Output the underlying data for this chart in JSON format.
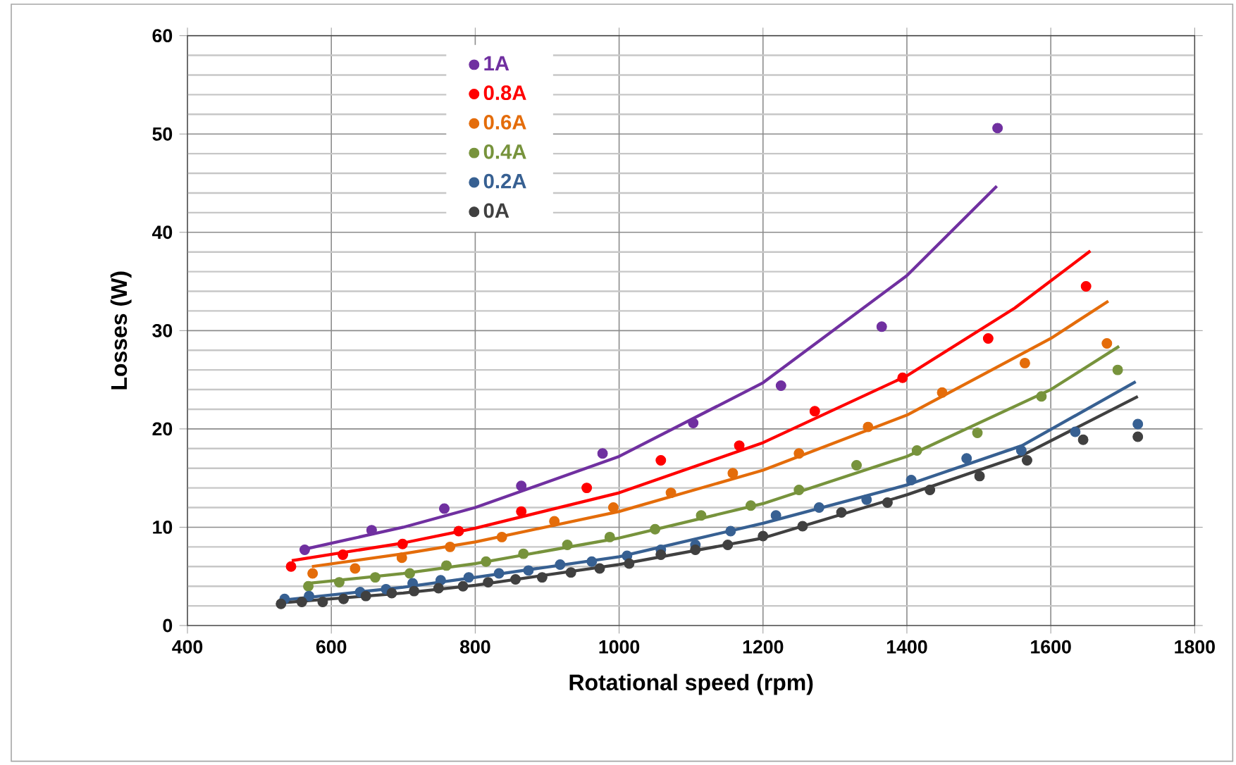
{
  "chart_data": {
    "type": "scatter",
    "xlabel": "Rotational speed (rpm)",
    "ylabel": "Losses (W)",
    "xlim": [
      400,
      1800
    ],
    "xticks": [
      400,
      600,
      800,
      1000,
      1200,
      1400,
      1600,
      1800
    ],
    "ylim": [
      0,
      60
    ],
    "yticks": [
      0,
      10,
      20,
      30,
      40,
      50,
      60
    ],
    "grid": true,
    "legend": "top",
    "marker": "circle",
    "series": [
      {
        "name": "1A",
        "color": "#7030a0",
        "x": [
          563,
          656,
          757,
          864,
          977,
          1103,
          1225,
          1365,
          1526
        ],
        "values": [
          7.7,
          9.7,
          11.9,
          14.2,
          17.5,
          20.6,
          24.4,
          30.4,
          50.6
        ]
      },
      {
        "name": "0.8A",
        "color": "#ff0000",
        "x": [
          544,
          616,
          699,
          777,
          864,
          955,
          1058,
          1167,
          1272,
          1394,
          1513,
          1649
        ],
        "values": [
          6.0,
          7.2,
          8.3,
          9.6,
          11.6,
          14.0,
          16.8,
          18.3,
          21.8,
          25.2,
          29.2,
          34.5
        ]
      },
      {
        "name": "0.6A",
        "color": "#e46c0a",
        "x": [
          574,
          633,
          698,
          765,
          837,
          910,
          992,
          1072,
          1158,
          1250,
          1346,
          1449,
          1564,
          1678
        ],
        "values": [
          5.3,
          5.8,
          6.9,
          8.0,
          9.0,
          10.6,
          12.0,
          13.5,
          15.5,
          17.5,
          20.2,
          23.7,
          26.7,
          28.7
        ]
      },
      {
        "name": "0.4A",
        "color": "#77933c",
        "x": [
          568,
          611,
          661,
          709,
          760,
          815,
          867,
          928,
          987,
          1050,
          1114,
          1183,
          1250,
          1330,
          1414,
          1498,
          1587,
          1693
        ],
        "values": [
          4.0,
          4.4,
          4.9,
          5.3,
          6.1,
          6.5,
          7.3,
          8.2,
          9.0,
          9.8,
          11.2,
          12.2,
          13.8,
          16.3,
          17.8,
          19.6,
          23.3,
          26.0
        ]
      },
      {
        "name": "0.2A",
        "color": "#376092",
        "x": [
          535,
          569,
          640,
          676,
          713,
          752,
          791,
          833,
          874,
          918,
          962,
          1011,
          1058,
          1106,
          1155,
          1218,
          1278,
          1344,
          1406,
          1483,
          1559,
          1634,
          1721
        ],
        "values": [
          2.7,
          3.0,
          3.4,
          3.7,
          4.3,
          4.6,
          4.9,
          5.3,
          5.6,
          6.2,
          6.5,
          7.1,
          7.7,
          8.2,
          9.6,
          11.2,
          12.0,
          12.8,
          14.8,
          17.0,
          17.8,
          19.7,
          20.5
        ]
      },
      {
        "name": "0A",
        "color": "#404040",
        "x": [
          530,
          559,
          588,
          617,
          648,
          684,
          715,
          749,
          783,
          818,
          856,
          893,
          933,
          973,
          1014,
          1058,
          1106,
          1151,
          1200,
          1255,
          1309,
          1373,
          1432,
          1501,
          1567,
          1645,
          1721
        ],
        "values": [
          2.2,
          2.4,
          2.4,
          2.7,
          3.0,
          3.3,
          3.5,
          3.8,
          4.0,
          4.4,
          4.7,
          4.9,
          5.4,
          5.8,
          6.3,
          7.2,
          7.7,
          8.2,
          9.1,
          10.1,
          11.5,
          12.5,
          13.8,
          15.2,
          16.8,
          18.9,
          19.2
        ]
      },
      {
        "type": "line",
        "marker": "none",
        "color": "#7030a0",
        "x": [
          565,
          700,
          800,
          1000,
          1200,
          1400,
          1525
        ],
        "values": [
          7.8,
          10.0,
          12.0,
          17.2,
          24.7,
          35.6,
          44.7
        ]
      },
      {
        "type": "line",
        "marker": "none",
        "color": "#ff0000",
        "x": [
          545,
          700,
          800,
          1000,
          1200,
          1400,
          1550,
          1655
        ],
        "values": [
          6.6,
          8.4,
          9.9,
          13.5,
          18.6,
          25.4,
          32.3,
          38.1
        ]
      },
      {
        "type": "line",
        "marker": "none",
        "color": "#e46c0a",
        "x": [
          573,
          700,
          800,
          1000,
          1200,
          1400,
          1600,
          1680
        ],
        "values": [
          6.0,
          7.3,
          8.5,
          11.6,
          15.8,
          21.4,
          29.2,
          33.0
        ]
      },
      {
        "type": "line",
        "marker": "none",
        "color": "#77933c",
        "x": [
          570,
          700,
          800,
          1000,
          1200,
          1400,
          1600,
          1695
        ],
        "values": [
          4.3,
          5.3,
          6.3,
          8.9,
          12.4,
          17.2,
          24.0,
          28.4
        ]
      },
      {
        "type": "line",
        "marker": "none",
        "color": "#376092",
        "x": [
          535,
          700,
          800,
          1000,
          1200,
          1400,
          1560,
          1718
        ],
        "values": [
          2.6,
          3.9,
          4.9,
          7.0,
          10.4,
          14.3,
          18.3,
          24.8
        ]
      },
      {
        "type": "line",
        "marker": "none",
        "color": "#404040",
        "x": [
          530,
          700,
          800,
          1000,
          1200,
          1400,
          1560,
          1721
        ],
        "values": [
          2.3,
          3.3,
          4.1,
          6.2,
          8.9,
          13.3,
          17.3,
          23.3
        ]
      }
    ]
  }
}
